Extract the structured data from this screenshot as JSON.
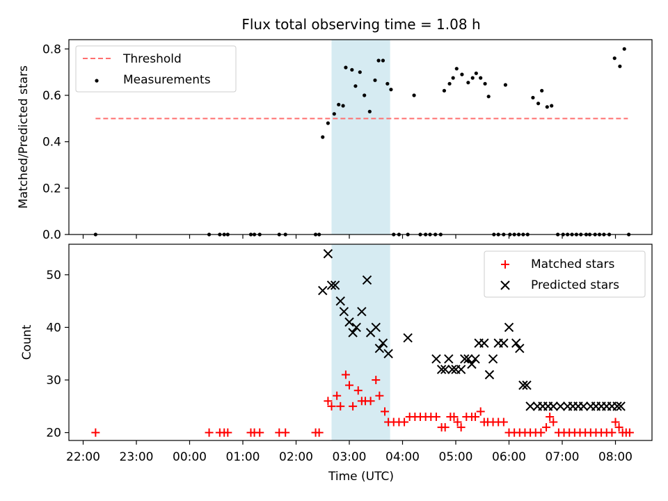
{
  "chart_data": [
    {
      "type": "scatter",
      "title": "Flux total observing time = 1.08 h",
      "xlabel": "",
      "ylabel": "Matched/Predicted stars",
      "ylim": [
        0,
        0.84
      ],
      "y_ticks": [
        "0.0",
        "0.2",
        "0.4",
        "0.6",
        "0.8"
      ],
      "highlight_span": {
        "start": "02:40",
        "end": "03:46",
        "color": "#add8e6"
      },
      "legend_position": "top-left",
      "colors": {
        "threshold": "#ff6f6f",
        "measurements": "#000000",
        "span": "#add8e6"
      },
      "series": [
        {
          "name": "Threshold",
          "style": "dashed-line",
          "x": [
            "22:14",
            "08:14"
          ],
          "y": [
            0.5,
            0.5
          ]
        },
        {
          "name": "Measurements",
          "style": "points",
          "x": [
            "22:14",
            "00:22",
            "00:34",
            "00:39",
            "00:43",
            "01:09",
            "01:13",
            "01:19",
            "01:41",
            "01:48",
            "02:22",
            "02:26",
            "02:30",
            "02:36",
            "02:43",
            "02:48",
            "02:53",
            "02:56",
            "03:03",
            "03:07",
            "03:12",
            "03:17",
            "03:23",
            "03:29",
            "03:33",
            "03:38",
            "03:43",
            "03:47",
            "03:50",
            "03:56",
            "04:06",
            "04:13",
            "04:20",
            "04:26",
            "04:31",
            "04:37",
            "04:43",
            "04:47",
            "04:53",
            "04:57",
            "05:01",
            "05:07",
            "05:14",
            "05:19",
            "05:23",
            "05:28",
            "05:33",
            "05:37",
            "05:43",
            "05:48",
            "05:54",
            "05:56",
            "06:01",
            "06:06",
            "06:11",
            "06:16",
            "06:21",
            "06:27",
            "06:33",
            "06:37",
            "06:43",
            "06:48",
            "06:55",
            "07:01",
            "07:06",
            "07:11",
            "07:16",
            "07:21",
            "07:27",
            "07:31",
            "07:37",
            "07:42",
            "07:47",
            "07:53",
            "07:59",
            "08:05",
            "08:10",
            "08:15"
          ],
          "y": [
            0,
            0,
            0,
            0,
            0,
            0,
            0,
            0,
            0,
            0,
            0,
            0,
            0.42,
            0.48,
            0.52,
            0.56,
            0.555,
            0.72,
            0.71,
            0.64,
            0.7,
            0.6,
            0.53,
            0.665,
            0.75,
            0.75,
            0.65,
            0.625,
            0,
            0,
            0,
            0.6,
            0,
            0,
            0,
            0,
            0,
            0.62,
            0.65,
            0.675,
            0.715,
            0.69,
            0.655,
            0.675,
            0.695,
            0.675,
            0.65,
            0.595,
            0,
            0,
            0,
            0.645,
            0,
            0,
            0,
            0,
            0,
            0.59,
            0.565,
            0.62,
            0.55,
            0.555,
            0,
            0,
            0,
            0,
            0,
            0,
            0,
            0,
            0,
            0,
            0,
            0,
            0.76,
            0.725,
            0.8,
            0
          ]
        }
      ]
    },
    {
      "type": "scatter",
      "title": "",
      "xlabel": "Time (UTC)",
      "ylabel": "Count",
      "ylim": [
        18.5,
        55.8
      ],
      "y_ticks": [
        "20",
        "30",
        "40",
        "50"
      ],
      "x_ticks": [
        "22:00",
        "23:00",
        "00:00",
        "01:00",
        "02:00",
        "03:00",
        "04:00",
        "05:00",
        "06:00",
        "07:00",
        "08:00"
      ],
      "highlight_span": {
        "start": "02:40",
        "end": "03:46",
        "color": "#add8e6"
      },
      "legend_position": "top-right",
      "colors": {
        "matched": "#ff0000",
        "predicted": "#000000"
      },
      "series": [
        {
          "name": "Matched stars",
          "marker": "plus",
          "x": [
            "22:14",
            "00:22",
            "00:34",
            "00:39",
            "00:43",
            "01:09",
            "01:13",
            "01:19",
            "01:41",
            "01:48",
            "02:22",
            "02:26",
            "02:36",
            "02:40",
            "02:46",
            "02:50",
            "02:56",
            "03:00",
            "03:04",
            "03:10",
            "03:14",
            "03:18",
            "03:24",
            "03:30",
            "03:34",
            "03:40",
            "03:44",
            "03:50",
            "03:56",
            "04:02",
            "04:08",
            "04:14",
            "04:20",
            "04:26",
            "04:32",
            "04:38",
            "04:44",
            "04:48",
            "04:54",
            "04:58",
            "05:02",
            "05:06",
            "05:12",
            "05:18",
            "05:22",
            "05:28",
            "05:32",
            "05:36",
            "05:42",
            "05:48",
            "05:54",
            "06:00",
            "06:06",
            "06:12",
            "06:18",
            "06:24",
            "06:30",
            "06:36",
            "06:42",
            "06:46",
            "06:50",
            "06:56",
            "07:02",
            "07:08",
            "07:14",
            "07:20",
            "07:26",
            "07:32",
            "07:38",
            "07:44",
            "07:50",
            "07:56",
            "08:00",
            "08:04",
            "08:08",
            "08:12",
            "08:16"
          ],
          "y": [
            20,
            20,
            20,
            20,
            20,
            20,
            20,
            20,
            20,
            20,
            20,
            20,
            26,
            25,
            27,
            25,
            31,
            29,
            25,
            28,
            26,
            26,
            26,
            30,
            27,
            24,
            22,
            22,
            22,
            22,
            23,
            23,
            23,
            23,
            23,
            23,
            21,
            21,
            23,
            23,
            22,
            21,
            23,
            23,
            23,
            24,
            22,
            22,
            22,
            22,
            22,
            20,
            20,
            20,
            20,
            20,
            20,
            20,
            21,
            23,
            22,
            20,
            20,
            20,
            20,
            20,
            20,
            20,
            20,
            20,
            20,
            20,
            22,
            21,
            20,
            20,
            20
          ]
        },
        {
          "name": "Predicted stars",
          "marker": "x",
          "x": [
            "02:30",
            "02:36",
            "02:40",
            "02:44",
            "02:50",
            "02:54",
            "03:00",
            "03:04",
            "03:08",
            "03:14",
            "03:20",
            "03:24",
            "03:30",
            "03:34",
            "03:38",
            "03:44",
            "04:06",
            "04:38",
            "04:44",
            "04:48",
            "04:52",
            "04:56",
            "05:00",
            "05:06",
            "05:10",
            "05:14",
            "05:18",
            "05:22",
            "05:26",
            "05:32",
            "05:38",
            "05:42",
            "05:48",
            "05:54",
            "06:00",
            "06:08",
            "06:12",
            "06:16",
            "06:20",
            "06:24",
            "06:32",
            "06:38",
            "06:44",
            "06:50",
            "06:58",
            "07:06",
            "07:12",
            "07:18",
            "07:24",
            "07:32",
            "07:38",
            "07:44",
            "07:50",
            "07:56",
            "08:02",
            "08:06"
          ],
          "y": [
            47,
            54,
            48,
            48,
            45,
            43,
            41,
            39,
            40,
            43,
            49,
            39,
            40,
            36,
            37,
            35,
            38,
            34,
            32,
            32,
            34,
            32,
            32,
            32,
            34,
            34,
            33,
            34,
            37,
            37,
            31,
            34,
            37,
            37,
            40,
            37,
            36,
            29,
            29,
            25,
            25,
            25,
            25,
            25,
            25,
            25,
            25,
            25,
            25,
            25,
            25,
            25,
            25,
            25,
            25,
            25
          ]
        }
      ]
    }
  ]
}
